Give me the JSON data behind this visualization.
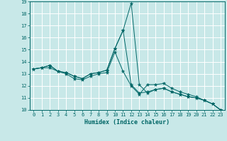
{
  "xlabel": "Humidex (Indice chaleur)",
  "bg_color": "#c8e8e8",
  "grid_color": "#ffffff",
  "line_color": "#006666",
  "xlim": [
    -0.5,
    23.5
  ],
  "ylim": [
    10,
    19
  ],
  "xticks": [
    0,
    1,
    2,
    3,
    4,
    5,
    6,
    7,
    8,
    9,
    10,
    11,
    12,
    13,
    14,
    15,
    16,
    17,
    18,
    19,
    20,
    21,
    22,
    23
  ],
  "yticks": [
    10,
    11,
    12,
    13,
    14,
    15,
    16,
    17,
    18,
    19
  ],
  "line1_x": [
    0,
    1,
    2,
    3,
    4,
    5,
    6,
    7,
    8,
    9,
    10,
    11,
    12,
    13,
    14,
    15,
    16,
    17,
    18,
    19,
    20,
    21,
    22,
    23
  ],
  "line1_y": [
    13.4,
    13.5,
    13.7,
    13.2,
    13.1,
    12.8,
    12.6,
    13.0,
    13.1,
    13.3,
    15.1,
    16.6,
    18.85,
    12.1,
    11.4,
    11.7,
    11.8,
    11.5,
    11.3,
    11.1,
    11.0,
    10.8,
    10.5,
    10.0
  ],
  "line2_x": [
    0,
    1,
    2,
    3,
    4,
    5,
    6,
    7,
    8,
    9,
    10,
    11,
    12,
    13,
    14,
    15,
    16,
    17,
    18,
    19,
    20,
    21,
    22,
    23
  ],
  "line2_y": [
    13.4,
    13.5,
    13.7,
    13.2,
    13.1,
    12.8,
    12.6,
    13.0,
    13.1,
    13.3,
    15.1,
    16.6,
    12.1,
    11.4,
    11.5,
    11.7,
    11.8,
    11.5,
    11.3,
    11.1,
    11.0,
    10.8,
    10.5,
    10.0
  ],
  "line3_x": [
    0,
    1,
    2,
    3,
    4,
    5,
    6,
    7,
    8,
    9,
    10,
    11,
    12,
    13,
    14,
    15,
    16,
    17,
    18,
    19,
    20,
    21,
    22,
    23
  ],
  "line3_y": [
    13.4,
    13.5,
    13.5,
    13.2,
    13.0,
    12.6,
    12.5,
    12.8,
    13.0,
    13.1,
    14.8,
    13.2,
    12.0,
    11.3,
    12.1,
    12.1,
    12.2,
    11.8,
    11.5,
    11.3,
    11.1,
    10.8,
    10.5,
    10.0
  ]
}
